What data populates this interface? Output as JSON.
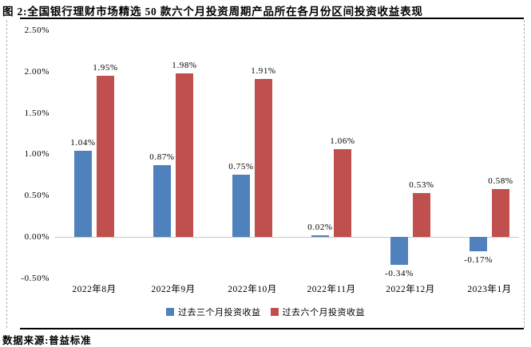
{
  "footer": {
    "source": "数据来源:普益标准"
  },
  "chart_data": {
    "type": "bar",
    "title": "图 2:全国银行理财市场精选 50 款六个月投资周期产品所在各月份区间投资收益表现",
    "categories": [
      "2022年8月",
      "2022年9月",
      "2022年10月",
      "2022年11月",
      "2022年12月",
      "2023年1月"
    ],
    "series": [
      {
        "name": "过去三个月投资收益",
        "color": "#4F81BD",
        "values": [
          1.04,
          0.87,
          0.75,
          0.02,
          -0.34,
          -0.17
        ],
        "labels": [
          "1.04%",
          "0.87%",
          "0.75%",
          "0.02%",
          "-0.34%",
          "-0.17%"
        ]
      },
      {
        "name": "过去六个月投资收益",
        "color": "#C0504D",
        "values": [
          1.95,
          1.98,
          1.91,
          1.06,
          0.53,
          0.58
        ],
        "labels": [
          "1.95%",
          "1.98%",
          "1.91%",
          "1.06%",
          "0.53%",
          "0.58%"
        ]
      }
    ],
    "y_ticks": [
      {
        "label": "2.50%",
        "value": 2.5
      },
      {
        "label": "2.00%",
        "value": 2.0
      },
      {
        "label": "1.50%",
        "value": 1.5
      },
      {
        "label": "1.00%",
        "value": 1.0
      },
      {
        "label": "0.50%",
        "value": 0.5
      },
      {
        "label": "0.00%",
        "value": 0.0
      },
      {
        "label": "-0.50%",
        "value": -0.5
      }
    ],
    "ylim": [
      -0.5,
      2.5
    ],
    "grid": false,
    "legend_position": "bottom",
    "axis_color": "#c9c9c9"
  }
}
